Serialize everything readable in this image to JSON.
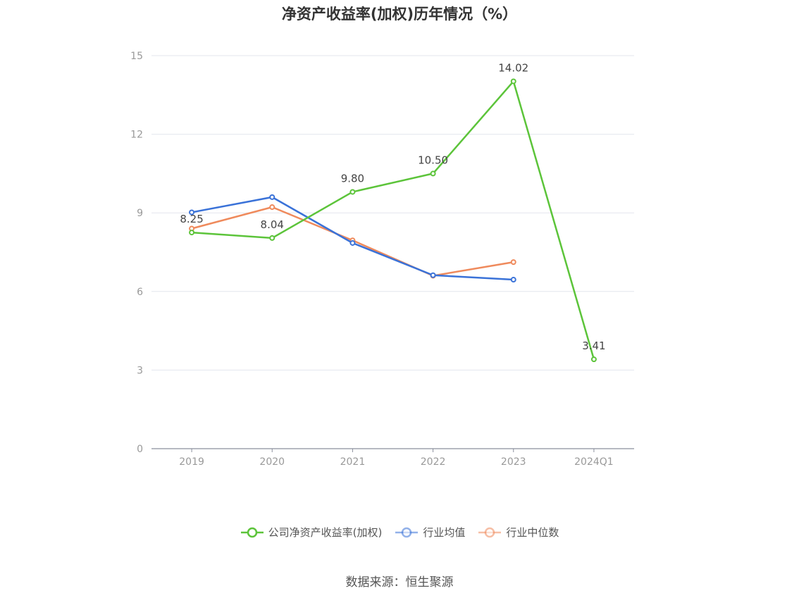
{
  "chart_data": {
    "type": "line",
    "title": "净资产收益率(加权)历年情况（%）",
    "categories": [
      "2019",
      "2020",
      "2021",
      "2022",
      "2023",
      "2024Q1"
    ],
    "ylim": [
      0,
      15
    ],
    "yticks": [
      "0",
      "3",
      "6",
      "9",
      "12",
      "15"
    ],
    "grid": true,
    "legend_position": "bottom",
    "series": [
      {
        "name": "公司净资产收益率(加权)",
        "color": "#5cc43a",
        "values": [
          8.25,
          8.04,
          9.8,
          10.5,
          14.02,
          3.41
        ],
        "labels": [
          "8.25",
          "8.04",
          "9.80",
          "10.50",
          "14.02",
          "3.41"
        ]
      },
      {
        "name": "行业均值",
        "color": "#3a72d8",
        "values": [
          9.02,
          9.6,
          7.85,
          6.62,
          6.45,
          null
        ]
      },
      {
        "name": "行业中位数",
        "color": "#ef8a5c",
        "values": [
          8.4,
          9.22,
          7.95,
          6.6,
          7.12,
          null
        ]
      }
    ],
    "source": "数据来源：恒生聚源"
  }
}
